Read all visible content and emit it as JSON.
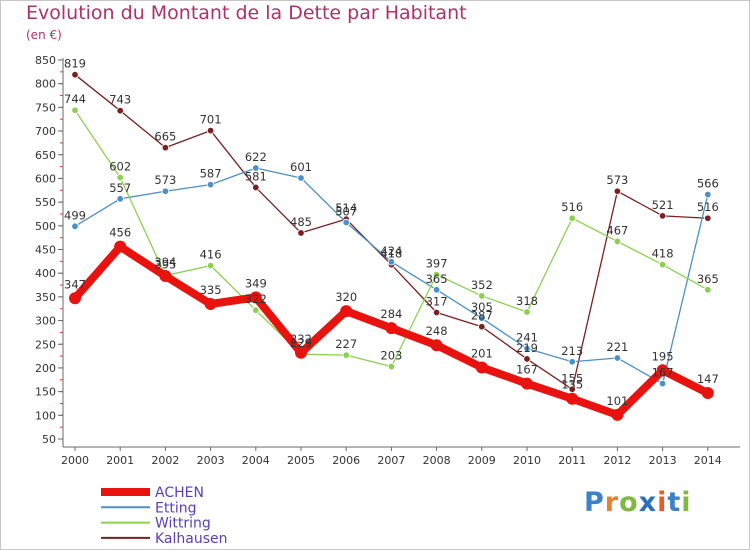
{
  "header": {
    "title": "Evolution du Montant de la Dette par Habitant",
    "unit": "(en €)"
  },
  "logo": {
    "text": "Proxiti",
    "letter_colors": [
      "#3d82c6",
      "#e8812f",
      "#7fb843",
      "#2f6fb6",
      "#e85c2a",
      "#3d82c6",
      "#7fb843"
    ]
  },
  "chart_data": {
    "type": "line",
    "x": [
      2000,
      2001,
      2002,
      2003,
      2004,
      2005,
      2006,
      2007,
      2008,
      2009,
      2010,
      2011,
      2012,
      2013,
      2014
    ],
    "ylim": [
      50,
      850
    ],
    "yticks": [
      50,
      100,
      150,
      200,
      250,
      300,
      350,
      400,
      450,
      500,
      550,
      600,
      650,
      700,
      750,
      800,
      850
    ],
    "grid": false,
    "legend_position": "bottom-left",
    "series": [
      {
        "name": "Kalhausen",
        "color": "#7a2020",
        "values": [
          819,
          743,
          665,
          701,
          581,
          485,
          514,
          418,
          317,
          287,
          219,
          155,
          573,
          521,
          516
        ]
      },
      {
        "name": "Etting",
        "color": "#4b91c8",
        "values": [
          499,
          557,
          573,
          587,
          622,
          601,
          507,
          424,
          365,
          305,
          241,
          213,
          221,
          167,
          566
        ]
      },
      {
        "name": "Wittring",
        "color": "#8bd14f",
        "values": [
          744,
          602,
          395,
          416,
          322,
          229,
          227,
          203,
          397,
          352,
          318,
          516,
          467,
          418,
          365
        ]
      },
      {
        "name": "ACHEN",
        "color": "#e8130e",
        "values": [
          347,
          456,
          394,
          335,
          349,
          232,
          320,
          284,
          248,
          201,
          167,
          135,
          101,
          195,
          147
        ]
      }
    ]
  }
}
